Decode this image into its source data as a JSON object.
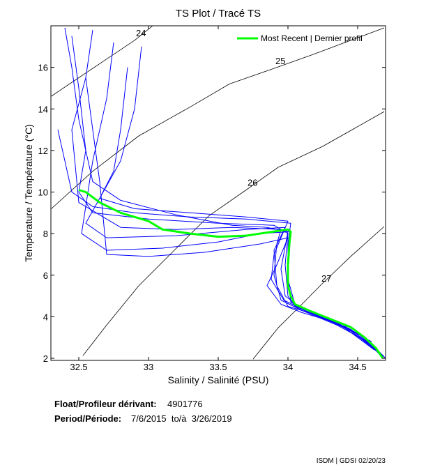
{
  "chart_data": {
    "type": "line",
    "title": "TS Plot / Tracé TS",
    "x_label": "Salinity / Salinité (PSU)",
    "y_label": "Temperature / Température (°C)",
    "xlim": [
      32.3,
      34.7
    ],
    "xticks": [
      32.5,
      33,
      33.5,
      34,
      34.5
    ],
    "ylim": [
      1.9,
      18
    ],
    "yticks": [
      2,
      4,
      6,
      8,
      10,
      12,
      14,
      16
    ],
    "legend_position": "upper right",
    "contours": [
      {
        "level": 24,
        "color": "#000000",
        "x": [
          32.3,
          32.5,
          32.7,
          32.9,
          33.03
        ],
        "y": [
          14.6,
          15.5,
          16.4,
          17.3,
          18
        ]
      },
      {
        "level": 25,
        "color": "#000000",
        "x": [
          32.3,
          32.6,
          32.93,
          33.3,
          33.58,
          33.9,
          34.18,
          34.45,
          34.69
        ],
        "y": [
          9.18,
          11.0,
          12.7,
          14.1,
          15.2,
          15.95,
          16.62,
          17.3,
          17.9
        ]
      },
      {
        "level": 26,
        "color": "#000000",
        "x": [
          32.53,
          32.7,
          32.93,
          33.2,
          33.43,
          33.7,
          33.93,
          34.25,
          34.69
        ],
        "y": [
          2.13,
          3.6,
          5.49,
          7.3,
          8.84,
          10.1,
          11.19,
          12.2,
          13.87
        ]
      },
      {
        "level": 27,
        "color": "#000000",
        "x": [
          33.75,
          33.93,
          34.1,
          34.23,
          34.45,
          34.69
        ],
        "y": [
          1.96,
          3.47,
          4.6,
          5.49,
          6.9,
          8.34
        ]
      }
    ],
    "series": [
      {
        "color": "#0000ff",
        "x": [
          32.45,
          32.5,
          32.55,
          32.5,
          32.6,
          33.0,
          33.5,
          33.9,
          34.0,
          33.98,
          34.0,
          34.05,
          34.3,
          34.55,
          34.68
        ],
        "y": [
          17.5,
          15.0,
          12.0,
          10.0,
          9.0,
          8.7,
          8.5,
          8.4,
          8.0,
          6.5,
          5.0,
          4.5,
          3.8,
          3.0,
          2.0
        ]
      },
      {
        "color": "#0000ff",
        "x": [
          32.6,
          32.55,
          32.45,
          32.5,
          32.8,
          33.2,
          33.6,
          33.95,
          33.92,
          33.9,
          33.95,
          34.1,
          34.35,
          34.6,
          34.7
        ],
        "y": [
          17.8,
          15.5,
          13.0,
          9.5,
          8.3,
          8.2,
          8.3,
          8.2,
          7.5,
          6.0,
          4.8,
          4.3,
          3.6,
          2.7,
          2.0
        ]
      },
      {
        "color": "#0000ff",
        "x": [
          32.75,
          32.7,
          32.6,
          32.52,
          32.7,
          33.1,
          33.5,
          33.8,
          34.02,
          34.0,
          34.02,
          34.2,
          34.45,
          34.65
        ],
        "y": [
          17.2,
          14.5,
          11.5,
          8.0,
          7.2,
          7.3,
          7.6,
          8.0,
          8.1,
          6.0,
          4.7,
          4.1,
          3.4,
          2.3
        ]
      },
      {
        "color": "#0000ff",
        "x": [
          32.85,
          32.8,
          32.75,
          32.65,
          32.9,
          33.3,
          33.7,
          34.0,
          33.9,
          33.88,
          33.97,
          34.15,
          34.4,
          34.62
        ],
        "y": [
          16.0,
          13.0,
          11.0,
          9.7,
          9.2,
          9.0,
          8.8,
          8.6,
          7.0,
          5.8,
          4.8,
          4.2,
          3.5,
          2.4
        ]
      },
      {
        "color": "#0000ff",
        "x": [
          32.4,
          32.45,
          32.5,
          32.6,
          32.8,
          33.2,
          33.6,
          33.85,
          34.0,
          33.95,
          33.98,
          34.1,
          34.4,
          34.68
        ],
        "y": [
          17.9,
          16.0,
          13.5,
          10.5,
          9.6,
          8.9,
          8.4,
          8.3,
          8.1,
          6.3,
          5.0,
          4.4,
          3.6,
          2.1
        ]
      },
      {
        "color": "#0000ff",
        "x": [
          32.55,
          32.6,
          32.65,
          32.7,
          33.0,
          33.4,
          33.8,
          34.0,
          33.92,
          33.85,
          33.95,
          34.1,
          34.35,
          34.6
        ],
        "y": [
          15.5,
          13.0,
          10.5,
          7.0,
          6.9,
          7.1,
          7.5,
          7.8,
          6.5,
          5.5,
          4.6,
          4.2,
          3.7,
          2.6
        ]
      },
      {
        "color": "#0000ff",
        "x": [
          32.95,
          32.9,
          32.8,
          32.55,
          32.7,
          33.2,
          33.7,
          33.98,
          33.9,
          33.92,
          34.0,
          34.25,
          34.5,
          34.7
        ],
        "y": [
          17.0,
          14.0,
          11.5,
          8.5,
          7.8,
          7.9,
          8.2,
          8.3,
          7.2,
          5.5,
          4.5,
          4.0,
          3.2,
          2.0
        ]
      },
      {
        "color": "#0000ff",
        "x": [
          32.35,
          32.4,
          32.45,
          32.6,
          32.9,
          33.3,
          33.7,
          34.02,
          34.0,
          34.0,
          34.05,
          34.3,
          34.6
        ],
        "y": [
          13.0,
          11.5,
          10.0,
          9.3,
          9.0,
          8.8,
          8.7,
          8.5,
          7.5,
          5.8,
          4.6,
          3.9,
          2.8
        ]
      },
      {
        "name": "Most Recent | Dernier profil",
        "color": "#00ff00",
        "x": [
          32.5,
          32.55,
          32.65,
          32.8,
          33.0,
          33.1,
          33.3,
          33.5,
          33.7,
          33.85,
          34.0,
          34.02,
          34.01,
          34.0,
          34.0,
          34.02,
          34.05,
          34.15,
          34.3,
          34.45,
          34.55,
          34.63,
          34.68
        ],
        "y": [
          10.1,
          10.0,
          9.5,
          9.0,
          8.6,
          8.2,
          8.0,
          7.85,
          7.9,
          8.05,
          8.2,
          8.1,
          7.5,
          6.5,
          5.5,
          5.0,
          4.6,
          4.3,
          3.9,
          3.5,
          3.0,
          2.5,
          2.0
        ]
      }
    ],
    "info": [
      {
        "label": "Float/Profileur dérivant:",
        "value": "4901776"
      },
      {
        "label": "Period/Période:",
        "value": "7/6/2015  to/à  3/26/2019"
      }
    ],
    "footer": "ISDM | GDSI 02/20/23"
  }
}
